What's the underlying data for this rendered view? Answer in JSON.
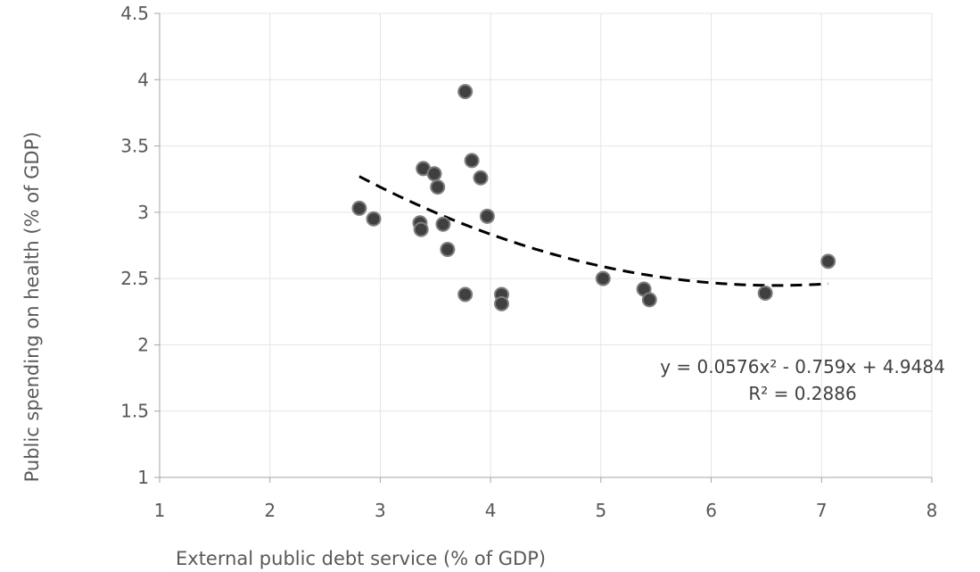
{
  "chart_data": {
    "type": "scatter",
    "title": "",
    "xlabel": "External public debt service (% of GDP)",
    "ylabel": "Public spending on health (% of GDP)",
    "xlim": [
      1,
      8
    ],
    "ylim": [
      1,
      4.5
    ],
    "xticks": [
      "1",
      "2",
      "3",
      "4",
      "5",
      "6",
      "7",
      "8"
    ],
    "yticks": [
      "1",
      "1.5",
      "2",
      "2.5",
      "3",
      "3.5",
      "4",
      "4.5"
    ],
    "grid": true,
    "legend": "none",
    "series": [
      {
        "points": [
          {
            "x": 2.81,
            "y": 3.03
          },
          {
            "x": 2.94,
            "y": 2.95
          },
          {
            "x": 3.36,
            "y": 2.92
          },
          {
            "x": 3.37,
            "y": 2.87
          },
          {
            "x": 3.39,
            "y": 3.33
          },
          {
            "x": 3.49,
            "y": 3.29
          },
          {
            "x": 3.52,
            "y": 3.19
          },
          {
            "x": 3.57,
            "y": 2.91
          },
          {
            "x": 3.61,
            "y": 2.72
          },
          {
            "x": 3.77,
            "y": 3.91
          },
          {
            "x": 3.77,
            "y": 2.38
          },
          {
            "x": 3.83,
            "y": 3.39
          },
          {
            "x": 3.91,
            "y": 3.26
          },
          {
            "x": 3.97,
            "y": 2.97
          },
          {
            "x": 4.1,
            "y": 2.38
          },
          {
            "x": 4.1,
            "y": 2.31
          },
          {
            "x": 5.02,
            "y": 2.5
          },
          {
            "x": 5.39,
            "y": 2.42
          },
          {
            "x": 5.44,
            "y": 2.34
          },
          {
            "x": 6.49,
            "y": 2.39
          },
          {
            "x": 7.06,
            "y": 2.63
          }
        ]
      }
    ],
    "trendline": {
      "kind": "polynomial",
      "order": 2,
      "coefficients": [
        0.0576,
        -0.759,
        4.9484
      ],
      "x_range": [
        2.81,
        7.06
      ],
      "style": "dashed"
    },
    "annotations": {
      "equation": "y = 0.0576x² - 0.759x + 4.9484",
      "r_squared": "R² = 0.2886"
    }
  }
}
